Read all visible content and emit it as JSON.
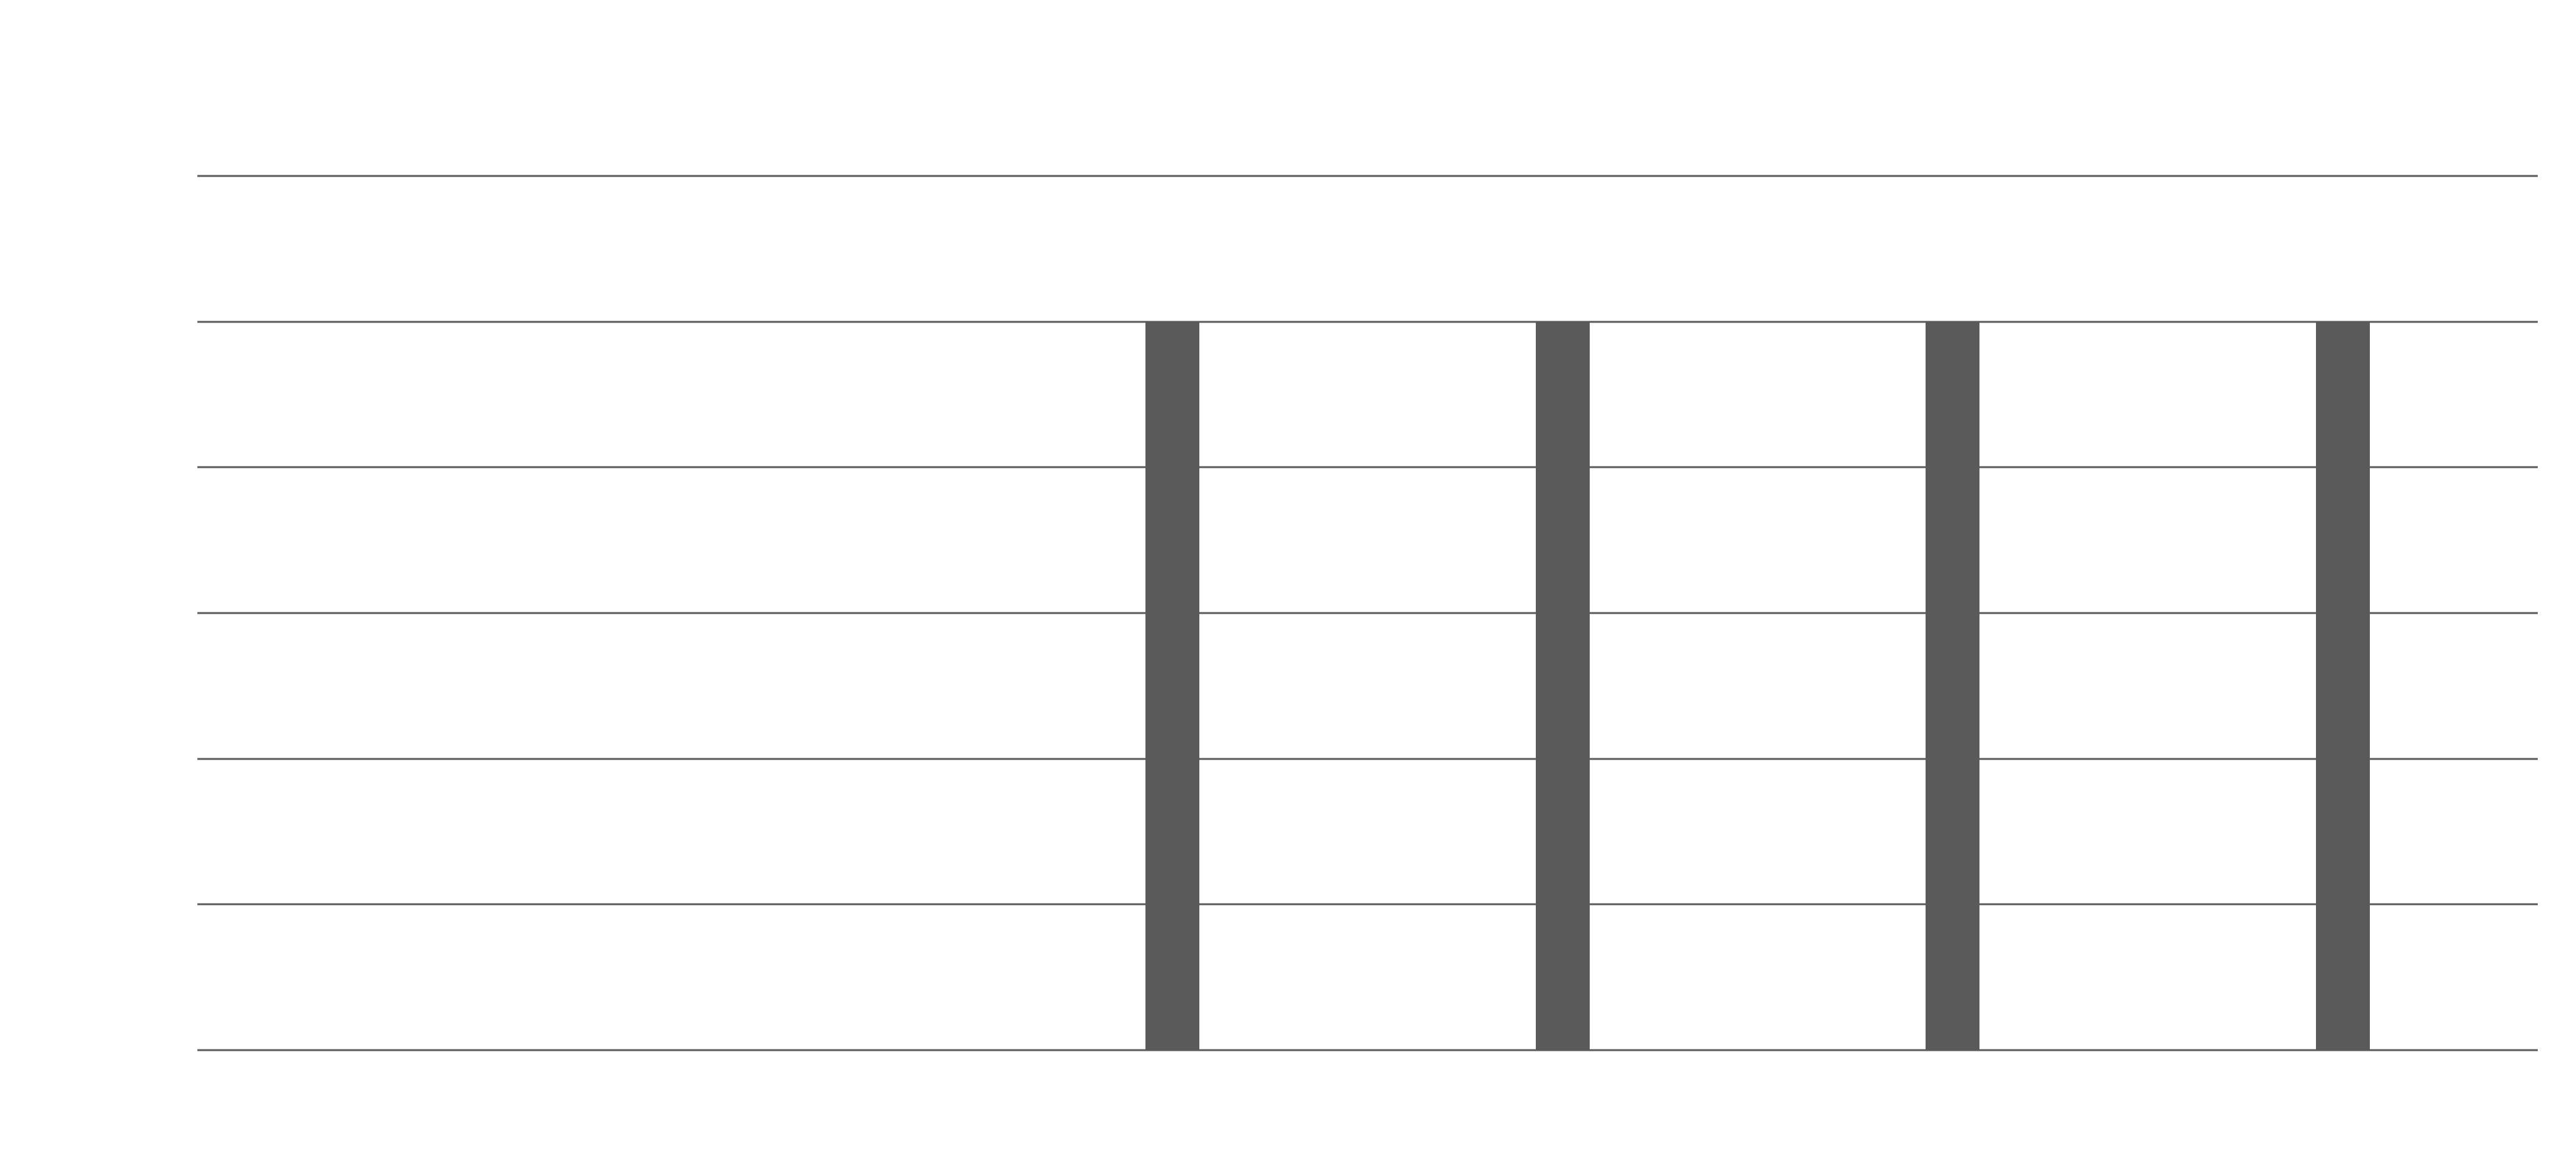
{
  "chart_data": {
    "type": "bar",
    "title": "",
    "xlabel": "",
    "ylabel": "",
    "category_count": 6,
    "bar_slots": [
      2,
      3,
      4,
      5
    ],
    "values": [
      5,
      5,
      5,
      5
    ],
    "ylim": [
      0,
      6
    ],
    "grid": true,
    "gridlines": [
      0,
      1,
      2,
      3,
      4,
      5,
      6
    ],
    "legend": "none",
    "colors": {
      "bar": "#5a5a5a",
      "grid": "#5a5a5a",
      "background": "#fefefe"
    }
  }
}
